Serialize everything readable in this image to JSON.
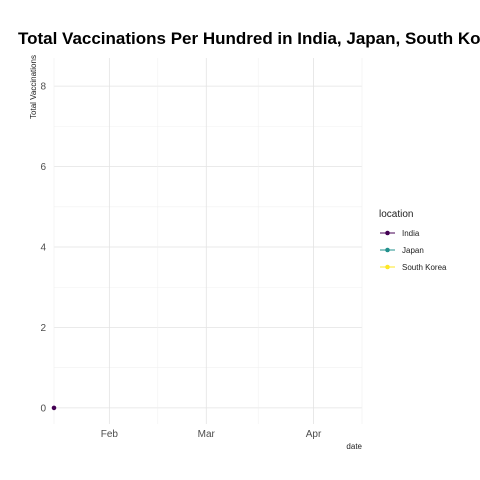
{
  "chart_data": {
    "type": "line",
    "title": "Total Vaccinations Per Hundred in India, Japan, South Korea",
    "xlabel": "date",
    "ylabel": "Total Vaccinations",
    "x_ticks": [
      "Feb",
      "Mar",
      "Apr"
    ],
    "x_range": [
      "2021-01-16",
      "2021-04-15"
    ],
    "ylim": [
      -0.4,
      8.7
    ],
    "y_ticks": [
      0,
      2,
      4,
      6,
      8
    ],
    "grid": true,
    "legend": {
      "title": "location",
      "placement": "right"
    },
    "series": [
      {
        "name": "India",
        "color": "#440154",
        "points": [
          {
            "x": "2021-01-16",
            "y": 0
          }
        ]
      },
      {
        "name": "Japan",
        "color": "#21908c",
        "points": []
      },
      {
        "name": "South Korea",
        "color": "#fde725",
        "points": []
      }
    ]
  }
}
